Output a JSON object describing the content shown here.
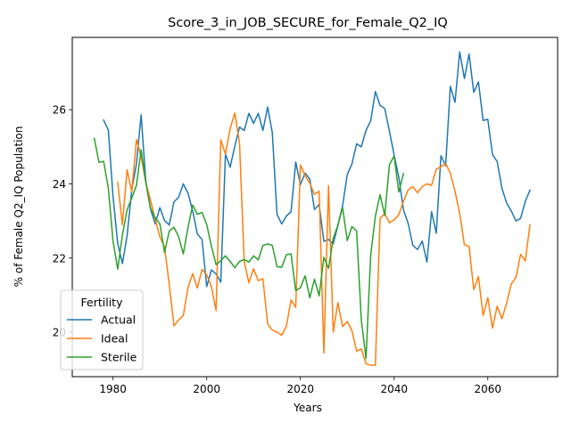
{
  "chart_data": {
    "type": "line",
    "title": "Score_3_in_JOB_SECURE_for_Female_Q2_IQ",
    "xlabel": "Years",
    "ylabel": "% of Female Q2_IQ Population",
    "xlim": [
      1971.3,
      2074.9
    ],
    "ylim": [
      18.8,
      27.95
    ],
    "xticks": [
      1980,
      2000,
      2020,
      2040,
      2060
    ],
    "yticks": [
      20,
      22,
      24,
      26
    ],
    "grid": false,
    "legend": {
      "title": "Fertility",
      "location": "lower-left"
    },
    "series": [
      {
        "name": "Actual",
        "color": "#1f77b4",
        "x": [
          1978,
          1979,
          1980,
          1981,
          1982,
          1983,
          1984,
          1985,
          1986,
          1987,
          1988,
          1989,
          1990,
          1991,
          1992,
          1993,
          1994,
          1995,
          1996,
          1997,
          1998,
          1999,
          2000,
          2001,
          2002,
          2003,
          2004,
          2005,
          2006,
          2007,
          2008,
          2009,
          2010,
          2011,
          2012,
          2013,
          2014,
          2015,
          2016,
          2017,
          2018,
          2019,
          2020,
          2021,
          2022,
          2023,
          2024,
          2025,
          2026,
          2027,
          2028,
          2029,
          2030,
          2031,
          2032,
          2033,
          2034,
          2035,
          2036,
          2037,
          2038,
          2039,
          2040,
          2041,
          2042,
          2043,
          2044,
          2045,
          2046,
          2047,
          2048,
          2049,
          2050,
          2051,
          2052,
          2053,
          2054,
          2055,
          2056,
          2057,
          2058,
          2059,
          2060,
          2061,
          2062,
          2063,
          2064,
          2065,
          2066,
          2067,
          2068,
          2069,
          2070
        ],
        "y": [
          25.72,
          25.45,
          23.66,
          22.39,
          21.85,
          22.6,
          23.84,
          24.54,
          25.86,
          24.07,
          23.32,
          22.92,
          23.36,
          23.01,
          22.89,
          23.51,
          23.64,
          24.0,
          23.75,
          23.27,
          22.65,
          22.5,
          21.23,
          21.68,
          21.57,
          21.35,
          24.8,
          24.45,
          25.02,
          25.53,
          25.44,
          25.9,
          25.63,
          25.9,
          25.44,
          26.07,
          25.38,
          23.18,
          22.92,
          23.13,
          23.25,
          24.59,
          23.98,
          24.29,
          24.13,
          23.31,
          23.44,
          22.45,
          22.5,
          22.38,
          22.88,
          23.41,
          24.25,
          24.54,
          25.08,
          25.0,
          25.44,
          25.7,
          26.49,
          26.12,
          26.03,
          25.42,
          24.78,
          24.18,
          23.3,
          22.93,
          22.34,
          22.23,
          22.46,
          21.89,
          23.25,
          22.67,
          24.76,
          24.49,
          26.63,
          26.2,
          27.56,
          26.84,
          27.5,
          26.47,
          26.75,
          25.71,
          25.74,
          24.79,
          24.6,
          23.89,
          23.49,
          23.27,
          23.0,
          23.07,
          23.53,
          23.83,
          null
        ]
      },
      {
        "name": "Ideal",
        "color": "#ff7f0e",
        "x": [
          1981,
          1982,
          1983,
          1984,
          1985,
          1986,
          1987,
          1988,
          1989,
          1990,
          1991,
          1992,
          1993,
          1994,
          1995,
          1996,
          1997,
          1998,
          1999,
          2000,
          2001,
          2002,
          2003,
          2004,
          2005,
          2006,
          2007,
          2008,
          2009,
          2010,
          2011,
          2012,
          2013,
          2014,
          2015,
          2016,
          2017,
          2018,
          2019,
          2020,
          2021,
          2022,
          2023,
          2024,
          2025,
          2026,
          2027,
          2028,
          2029,
          2030,
          2031,
          2032,
          2033,
          2034,
          2035,
          2036,
          2037,
          2038,
          2039,
          2040,
          2041,
          2042,
          2043,
          2044,
          2045,
          2046,
          2047,
          2048,
          2049,
          2050,
          2051,
          2052,
          2053,
          2054,
          2055,
          2056,
          2057,
          2058,
          2059,
          2060,
          2061,
          2062,
          2063,
          2064,
          2065,
          2066,
          2067,
          2068,
          2069,
          2070
        ],
        "y": [
          24.04,
          22.9,
          24.38,
          23.79,
          25.2,
          24.73,
          24.03,
          23.56,
          23.05,
          22.57,
          22.3,
          21.29,
          20.17,
          20.33,
          20.45,
          21.2,
          21.58,
          21.19,
          21.69,
          21.55,
          21.23,
          20.58,
          25.19,
          24.8,
          25.49,
          25.91,
          25.1,
          21.91,
          21.33,
          21.71,
          21.39,
          21.44,
          20.22,
          20.06,
          20.0,
          19.92,
          20.16,
          20.87,
          20.67,
          24.51,
          24.22,
          24.02,
          23.72,
          23.8,
          19.44,
          23.95,
          20.0,
          20.8,
          20.15,
          20.29,
          20.04,
          19.49,
          19.55,
          19.15,
          19.11,
          19.11,
          23.07,
          23.2,
          22.95,
          23.03,
          23.17,
          23.53,
          23.84,
          23.92,
          23.76,
          23.93,
          24.0,
          23.96,
          24.4,
          24.46,
          24.55,
          24.29,
          23.8,
          23.2,
          22.36,
          22.31,
          21.15,
          21.5,
          20.45,
          20.93,
          20.11,
          20.7,
          20.36,
          20.77,
          21.3,
          21.47,
          22.1,
          21.92,
          22.9,
          null
        ]
      },
      {
        "name": "Sterile",
        "color": "#2ca02c",
        "x": [
          1976,
          1977,
          1978,
          1979,
          1980,
          1981,
          1982,
          1983,
          1984,
          1985,
          1986,
          1987,
          1988,
          1989,
          1990,
          1991,
          1992,
          1993,
          1994,
          1995,
          1996,
          1997,
          1998,
          1999,
          2000,
          2001,
          2002,
          2003,
          2004,
          2005,
          2006,
          2007,
          2008,
          2009,
          2010,
          2011,
          2012,
          2013,
          2014,
          2015,
          2016,
          2017,
          2018,
          2019,
          2020,
          2021,
          2022,
          2023,
          2024,
          2025,
          2026,
          2027,
          2028,
          2029,
          2030,
          2031,
          2032,
          2033,
          2034,
          2035,
          2036,
          2037,
          2038,
          2039,
          2040,
          2041,
          2042,
          2043
        ],
        "y": [
          25.23,
          24.58,
          24.61,
          23.88,
          22.46,
          21.7,
          22.62,
          23.3,
          23.62,
          23.96,
          24.92,
          24.04,
          23.34,
          23.09,
          22.92,
          22.15,
          22.73,
          22.83,
          22.58,
          22.11,
          22.82,
          23.43,
          23.18,
          23.23,
          22.9,
          22.32,
          21.82,
          21.93,
          22.06,
          21.91,
          21.74,
          21.91,
          21.96,
          21.89,
          22.06,
          21.95,
          22.34,
          22.38,
          22.34,
          21.77,
          21.75,
          22.09,
          22.11,
          21.12,
          21.2,
          21.52,
          20.93,
          21.43,
          20.98,
          22.02,
          21.72,
          22.53,
          22.88,
          23.36,
          22.47,
          22.85,
          22.73,
          20.33,
          19.29,
          22.08,
          23.13,
          23.71,
          23.15,
          24.52,
          24.75,
          23.78,
          24.28,
          null
        ]
      }
    ]
  }
}
